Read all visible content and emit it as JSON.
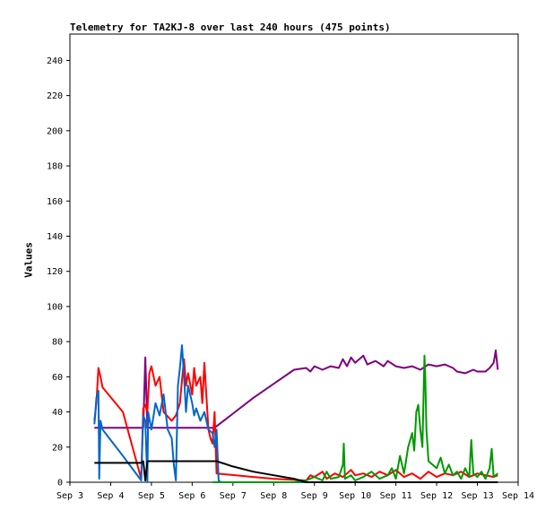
{
  "chart_data": {
    "type": "line",
    "title": "Telemetry for TA2KJ-8 over last 240 hours (475 points)",
    "xlabel": "",
    "ylabel": "Values",
    "x_tick_labels": [
      "Sep 3",
      "Sep 4",
      "Sep 5",
      "Sep 6",
      "Sep 7",
      "Sep 8",
      "Sep 9",
      "Sep 10",
      "Sep 11",
      "Sep 12",
      "Sep 13",
      "Sep 14"
    ],
    "x_range_days": [
      3,
      14
    ],
    "ylim": [
      0,
      255
    ],
    "y_ticks": [
      0,
      20,
      40,
      60,
      80,
      100,
      120,
      140,
      160,
      180,
      200,
      220,
      240
    ],
    "grid": false,
    "legend": "none",
    "series": [
      {
        "color": "#7f007f",
        "points": [
          [
            3.6,
            31
          ],
          [
            4.8,
            31
          ],
          [
            4.85,
            71
          ],
          [
            4.9,
            31
          ],
          [
            6.55,
            31
          ],
          [
            7.0,
            39
          ],
          [
            7.5,
            48
          ],
          [
            8.0,
            56
          ],
          [
            8.5,
            64
          ],
          [
            8.8,
            65
          ],
          [
            8.9,
            63
          ],
          [
            9.0,
            66
          ],
          [
            9.2,
            64
          ],
          [
            9.4,
            66
          ],
          [
            9.6,
            65
          ],
          [
            9.7,
            70
          ],
          [
            9.8,
            66
          ],
          [
            9.9,
            71
          ],
          [
            10.0,
            68
          ],
          [
            10.2,
            72
          ],
          [
            10.3,
            67
          ],
          [
            10.5,
            69
          ],
          [
            10.7,
            66
          ],
          [
            10.8,
            69
          ],
          [
            11.0,
            66
          ],
          [
            11.2,
            65
          ],
          [
            11.4,
            66
          ],
          [
            11.6,
            64
          ],
          [
            11.8,
            67
          ],
          [
            12.0,
            66
          ],
          [
            12.2,
            67
          ],
          [
            12.4,
            65
          ],
          [
            12.5,
            63
          ],
          [
            12.7,
            62
          ],
          [
            12.9,
            64
          ],
          [
            13.0,
            63
          ],
          [
            13.2,
            63
          ],
          [
            13.3,
            65
          ],
          [
            13.4,
            68
          ],
          [
            13.45,
            75
          ],
          [
            13.5,
            64
          ]
        ]
      },
      {
        "color": "#ff0000",
        "points": [
          [
            3.6,
            35
          ],
          [
            3.65,
            45
          ],
          [
            3.7,
            65
          ],
          [
            3.75,
            60
          ],
          [
            3.8,
            54
          ],
          [
            4.3,
            40
          ],
          [
            4.75,
            2
          ],
          [
            4.8,
            42
          ],
          [
            4.85,
            44
          ],
          [
            4.9,
            40
          ],
          [
            4.95,
            62
          ],
          [
            5.0,
            66
          ],
          [
            5.1,
            55
          ],
          [
            5.2,
            60
          ],
          [
            5.3,
            40
          ],
          [
            5.5,
            35
          ],
          [
            5.6,
            38
          ],
          [
            5.7,
            45
          ],
          [
            5.75,
            58
          ],
          [
            5.8,
            70
          ],
          [
            5.85,
            55
          ],
          [
            5.9,
            62
          ],
          [
            6.0,
            50
          ],
          [
            6.05,
            65
          ],
          [
            6.1,
            55
          ],
          [
            6.2,
            60
          ],
          [
            6.25,
            45
          ],
          [
            6.3,
            68
          ],
          [
            6.4,
            30
          ],
          [
            6.45,
            25
          ],
          [
            6.5,
            22
          ],
          [
            6.55,
            40
          ],
          [
            6.6,
            5
          ],
          [
            7.5,
            3
          ],
          [
            8.0,
            2
          ],
          [
            8.8,
            1
          ],
          [
            8.9,
            4
          ],
          [
            9.0,
            3
          ],
          [
            9.2,
            6
          ],
          [
            9.3,
            2
          ],
          [
            9.5,
            5
          ],
          [
            9.7,
            3
          ],
          [
            9.9,
            7
          ],
          [
            10.0,
            4
          ],
          [
            10.2,
            5
          ],
          [
            10.4,
            3
          ],
          [
            10.6,
            6
          ],
          [
            10.8,
            4
          ],
          [
            11.0,
            7
          ],
          [
            11.2,
            3
          ],
          [
            11.4,
            5
          ],
          [
            11.6,
            2
          ],
          [
            11.8,
            6
          ],
          [
            12.0,
            3
          ],
          [
            12.2,
            5
          ],
          [
            12.4,
            4
          ],
          [
            12.6,
            6
          ],
          [
            12.8,
            3
          ],
          [
            13.0,
            5
          ],
          [
            13.2,
            4
          ],
          [
            13.4,
            3
          ],
          [
            13.5,
            4
          ]
        ]
      },
      {
        "color": "#0066cc",
        "points": [
          [
            3.6,
            33
          ],
          [
            3.62,
            38
          ],
          [
            3.65,
            48
          ],
          [
            3.7,
            52
          ],
          [
            3.72,
            2
          ],
          [
            3.75,
            35
          ],
          [
            3.8,
            30
          ],
          [
            4.3,
            15
          ],
          [
            4.75,
            1
          ],
          [
            4.8,
            38
          ],
          [
            4.85,
            35
          ],
          [
            4.9,
            0
          ],
          [
            4.92,
            40
          ],
          [
            5.0,
            30
          ],
          [
            5.1,
            45
          ],
          [
            5.2,
            38
          ],
          [
            5.3,
            50
          ],
          [
            5.4,
            30
          ],
          [
            5.5,
            25
          ],
          [
            5.55,
            10
          ],
          [
            5.6,
            1
          ],
          [
            5.65,
            55
          ],
          [
            5.7,
            65
          ],
          [
            5.75,
            78
          ],
          [
            5.8,
            60
          ],
          [
            5.85,
            40
          ],
          [
            5.9,
            55
          ],
          [
            6.0,
            45
          ],
          [
            6.05,
            38
          ],
          [
            6.1,
            42
          ],
          [
            6.2,
            35
          ],
          [
            6.3,
            40
          ],
          [
            6.4,
            30
          ],
          [
            6.5,
            28
          ],
          [
            6.55,
            20
          ],
          [
            6.6,
            30
          ],
          [
            6.65,
            1
          ],
          [
            6.7,
            0
          ],
          [
            13.5,
            0
          ]
        ]
      },
      {
        "color": "#009900",
        "points": [
          [
            6.5,
            0
          ],
          [
            8.5,
            0
          ],
          [
            8.8,
            1
          ],
          [
            9.0,
            3
          ],
          [
            9.2,
            1
          ],
          [
            9.3,
            6
          ],
          [
            9.4,
            2
          ],
          [
            9.6,
            3
          ],
          [
            9.7,
            10
          ],
          [
            9.72,
            22
          ],
          [
            9.75,
            2
          ],
          [
            9.9,
            4
          ],
          [
            10.0,
            1
          ],
          [
            10.2,
            3
          ],
          [
            10.4,
            6
          ],
          [
            10.6,
            2
          ],
          [
            10.8,
            4
          ],
          [
            10.9,
            8
          ],
          [
            11.0,
            2
          ],
          [
            11.1,
            15
          ],
          [
            11.2,
            5
          ],
          [
            11.3,
            20
          ],
          [
            11.4,
            28
          ],
          [
            11.45,
            18
          ],
          [
            11.5,
            40
          ],
          [
            11.55,
            44
          ],
          [
            11.6,
            30
          ],
          [
            11.65,
            20
          ],
          [
            11.7,
            72
          ],
          [
            11.72,
            60
          ],
          [
            11.75,
            30
          ],
          [
            11.8,
            12
          ],
          [
            11.9,
            10
          ],
          [
            12.0,
            8
          ],
          [
            12.1,
            14
          ],
          [
            12.2,
            5
          ],
          [
            12.3,
            10
          ],
          [
            12.4,
            4
          ],
          [
            12.5,
            6
          ],
          [
            12.6,
            2
          ],
          [
            12.7,
            8
          ],
          [
            12.8,
            3
          ],
          [
            12.85,
            24
          ],
          [
            12.9,
            5
          ],
          [
            13.0,
            3
          ],
          [
            13.1,
            6
          ],
          [
            13.2,
            2
          ],
          [
            13.3,
            8
          ],
          [
            13.35,
            19
          ],
          [
            13.4,
            3
          ],
          [
            13.5,
            5
          ]
        ]
      },
      {
        "color": "#000000",
        "points": [
          [
            3.6,
            11
          ],
          [
            4.75,
            11
          ],
          [
            4.8,
            12
          ],
          [
            4.85,
            1
          ],
          [
            4.9,
            12
          ],
          [
            5.0,
            12
          ],
          [
            6.6,
            12
          ],
          [
            7.0,
            9
          ],
          [
            7.5,
            6
          ],
          [
            8.0,
            4
          ],
          [
            8.5,
            2
          ],
          [
            8.8,
            0
          ],
          [
            9.0,
            0
          ],
          [
            13.5,
            0
          ]
        ]
      }
    ]
  }
}
